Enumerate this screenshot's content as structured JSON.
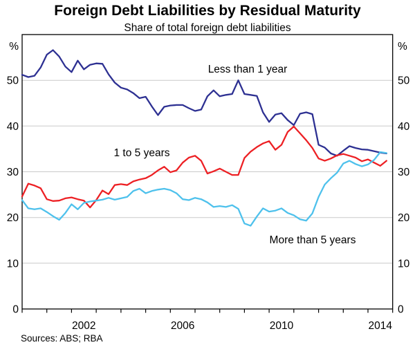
{
  "title": "Foreign Debt Liabilities by Residual Maturity",
  "subtitle": "Share of total foreign debt liabilities",
  "units": {
    "left": "%",
    "right": "%"
  },
  "source_note": "Sources: ABS; RBA",
  "colors": {
    "navy": "#2d3092",
    "red": "#ed2024",
    "cyan": "#4ec1ec",
    "gridline": "#c9c9c9",
    "axis": "#000000"
  },
  "chart_data": {
    "type": "line",
    "title": "Foreign Debt Liabilities by Residual Maturity",
    "subtitle": "Share of total foreign debt liabilities",
    "ylabel": "%",
    "ylim": [
      0,
      60
    ],
    "yticks": [
      0,
      10,
      20,
      30,
      40,
      50
    ],
    "grid": true,
    "legend_position": "inline-labels",
    "x_range": [
      2000,
      2015
    ],
    "x_start": 2000.0,
    "x_step": 0.25,
    "x_unit": "year (quarterly observations)",
    "x_label_years": [
      2002,
      2006,
      2010,
      2014
    ],
    "series": [
      {
        "name": "Less than 1 year",
        "color": "#2d3092",
        "values": [
          51.2,
          50.7,
          51.0,
          52.8,
          55.6,
          56.6,
          55.2,
          53.0,
          51.8,
          54.3,
          52.4,
          53.4,
          53.7,
          53.6,
          51.3,
          49.5,
          48.4,
          48.0,
          47.2,
          46.1,
          46.4,
          44.3,
          42.4,
          44.2,
          44.5,
          44.6,
          44.6,
          43.9,
          43.3,
          43.6,
          46.5,
          47.8,
          46.5,
          46.8,
          47.0,
          50.0,
          47.0,
          46.8,
          46.6,
          43.0,
          40.9,
          42.5,
          42.8,
          41.3,
          40.2,
          42.7,
          43.0,
          42.6,
          35.9,
          35.3,
          34.0,
          33.5,
          34.6,
          35.6,
          35.2,
          34.9,
          34.8,
          34.5,
          34.2,
          34.0
        ]
      },
      {
        "name": "1 to 5 years",
        "color": "#ed2024",
        "values": [
          24.6,
          27.4,
          27.0,
          26.4,
          24.0,
          23.6,
          23.7,
          24.2,
          24.4,
          24.0,
          23.7,
          22.2,
          23.8,
          25.9,
          25.1,
          27.1,
          27.3,
          27.1,
          27.9,
          28.3,
          28.6,
          29.3,
          30.3,
          31.1,
          29.9,
          30.3,
          32.0,
          33.1,
          33.5,
          32.4,
          29.6,
          30.1,
          30.7,
          30.0,
          29.3,
          29.3,
          33.0,
          34.4,
          35.4,
          36.2,
          36.7,
          34.8,
          35.9,
          38.7,
          39.9,
          38.4,
          36.9,
          35.2,
          32.9,
          32.4,
          32.9,
          33.6,
          33.9,
          33.5,
          33.1,
          32.3,
          32.7,
          32.0,
          31.3,
          32.4
        ]
      },
      {
        "name": "More than 5 years",
        "color": "#4ec1ec",
        "values": [
          23.8,
          22.0,
          21.8,
          22.0,
          21.2,
          20.3,
          19.5,
          21.0,
          22.9,
          21.8,
          23.2,
          23.5,
          23.7,
          23.9,
          24.3,
          23.9,
          24.2,
          24.5,
          25.8,
          26.3,
          25.3,
          25.8,
          26.1,
          26.3,
          26.0,
          25.3,
          24.0,
          23.8,
          24.3,
          24.0,
          23.3,
          22.3,
          22.5,
          22.3,
          22.7,
          21.9,
          18.7,
          18.2,
          20.2,
          22.0,
          21.3,
          21.5,
          22.0,
          21.0,
          20.5,
          19.6,
          19.3,
          20.9,
          24.5,
          27.2,
          28.6,
          29.8,
          31.8,
          32.4,
          31.7,
          31.2,
          31.6,
          32.6,
          34.3,
          34.1
        ]
      }
    ]
  }
}
